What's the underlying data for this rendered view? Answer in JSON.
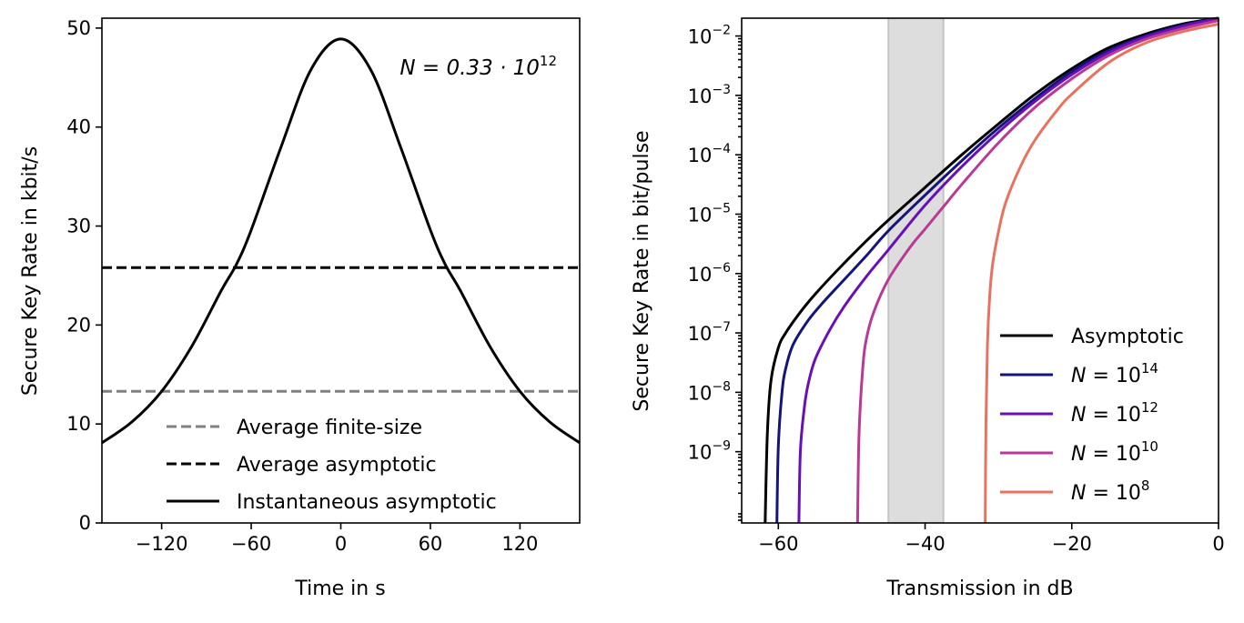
{
  "chart_data": [
    {
      "type": "line",
      "title": "",
      "xlabel": "Time in s",
      "ylabel": "Secure Key Rate in kbit/s",
      "xlim": [
        -160,
        160
      ],
      "ylim": [
        0,
        51
      ],
      "xticks": [
        -120,
        -60,
        0,
        60,
        120
      ],
      "xtick_labels": [
        "−120",
        "−60",
        "0",
        "60",
        "120"
      ],
      "yticks": [
        0,
        10,
        20,
        30,
        40,
        50
      ],
      "ytick_labels": [
        "0",
        "10",
        "20",
        "30",
        "40",
        "50"
      ],
      "annotation": {
        "prefix": "N = 0.33 · 10",
        "exponent": "12"
      },
      "legend_position": "lower-center",
      "series": [
        {
          "name": "Average finite-size",
          "style": "dashed",
          "color": "#808080",
          "kind": "constant",
          "value": 13.3
        },
        {
          "name": "Average asymptotic",
          "style": "dashed",
          "color": "#000000",
          "kind": "constant",
          "value": 25.8
        },
        {
          "name": "Instantaneous asymptotic",
          "style": "solid",
          "color": "#000000",
          "kind": "curve",
          "x": [
            -160,
            -140,
            -120,
            -100,
            -80,
            -70,
            -60,
            -40,
            -20,
            0,
            20,
            40,
            60,
            70,
            80,
            100,
            120,
            140,
            160
          ],
          "y": [
            8.1,
            10.2,
            13.3,
            17.8,
            23.5,
            26.1,
            29.6,
            38.0,
            45.8,
            48.9,
            45.8,
            38.0,
            29.6,
            26.1,
            23.5,
            17.8,
            13.3,
            10.2,
            8.1
          ]
        }
      ]
    },
    {
      "type": "line",
      "title": "",
      "xlabel": "Transmission in dB",
      "ylabel": "Secure Key Rate in bit/pulse",
      "xlim": [
        -65,
        0
      ],
      "ylim_log10": [
        -10.2,
        -1.7
      ],
      "yscale": "log",
      "xticks": [
        -60,
        -40,
        -20,
        0
      ],
      "xtick_labels": [
        "−60",
        "−40",
        "−20",
        "0"
      ],
      "yticks_exponents": [
        "−2",
        "−3",
        "−4",
        "−5",
        "−6",
        "−7",
        "−8",
        "−9"
      ],
      "ytick_base": "10",
      "shaded_region": {
        "x": [
          -45,
          -37.5
        ],
        "color": "#dddddd"
      },
      "legend_position": "lower-right",
      "series": [
        {
          "name": "Asymptotic",
          "label_prefix": "Asymptotic",
          "label_exponent": "",
          "color": "#000000",
          "style": "solid",
          "xmin": -61.8,
          "x": [
            -61.8,
            -61.5,
            -61,
            -60,
            -59,
            -57,
            -55,
            -52,
            -48,
            -45,
            -40,
            -35,
            -30,
            -25,
            -20,
            -15,
            -10,
            -5,
            0
          ],
          "logy": [
            -10.2,
            -8.7,
            -7.8,
            -7.25,
            -7.0,
            -6.65,
            -6.35,
            -5.95,
            -5.45,
            -5.1,
            -4.55,
            -4.0,
            -3.48,
            -2.98,
            -2.55,
            -2.2,
            -1.97,
            -1.8,
            -1.66
          ]
        },
        {
          "name": "N = 10^14",
          "label_prefix": "N = 10",
          "label_exponent": "14",
          "color": "#14147d",
          "style": "solid",
          "xmin": -60.2,
          "x": [
            -60.2,
            -60,
            -59.5,
            -59,
            -58,
            -56,
            -54,
            -51,
            -48,
            -45,
            -40,
            -35,
            -30,
            -25,
            -20,
            -15,
            -10,
            -5,
            0
          ],
          "logy": [
            -10.2,
            -8.9,
            -8.0,
            -7.6,
            -7.2,
            -6.8,
            -6.5,
            -6.1,
            -5.7,
            -5.28,
            -4.68,
            -4.1,
            -3.55,
            -3.05,
            -2.6,
            -2.25,
            -2.0,
            -1.82,
            -1.68
          ]
        },
        {
          "name": "N = 10^12",
          "label_prefix": "N = 10",
          "label_exponent": "12",
          "color": "#6a0fb7",
          "style": "solid",
          "xmin": -57.2,
          "x": [
            -57.2,
            -57,
            -56.5,
            -56,
            -55,
            -53,
            -51,
            -48,
            -45,
            -40,
            -35,
            -30,
            -25,
            -20,
            -15,
            -10,
            -5,
            0
          ],
          "logy": [
            -10.2,
            -9.0,
            -8.3,
            -7.9,
            -7.45,
            -6.95,
            -6.55,
            -6.05,
            -5.6,
            -4.85,
            -4.2,
            -3.62,
            -3.1,
            -2.65,
            -2.28,
            -2.02,
            -1.84,
            -1.7
          ]
        },
        {
          "name": "N = 10^10",
          "label_prefix": "N = 10",
          "label_exponent": "10",
          "color": "#b83a96",
          "style": "solid",
          "xmin": -49.2,
          "x": [
            -49.2,
            -49,
            -48.5,
            -48,
            -47,
            -45,
            -42,
            -40,
            -37,
            -35,
            -30,
            -25,
            -20,
            -15,
            -10,
            -5,
            0
          ],
          "logy": [
            -10.2,
            -8.7,
            -7.6,
            -7.1,
            -6.65,
            -6.1,
            -5.55,
            -5.25,
            -4.8,
            -4.5,
            -3.8,
            -3.2,
            -2.72,
            -2.33,
            -2.06,
            -1.88,
            -1.74
          ]
        },
        {
          "name": "N = 10^8",
          "label_prefix": "N = 10",
          "label_exponent": "8",
          "color": "#e8725f",
          "style": "solid",
          "xmin": -31.8,
          "x": [
            -31.8,
            -31.7,
            -31.5,
            -31.2,
            -30.8,
            -30,
            -29,
            -27,
            -25,
            -22,
            -20,
            -15,
            -10,
            -5,
            0
          ],
          "logy": [
            -10.2,
            -8.5,
            -7.2,
            -6.4,
            -5.85,
            -5.3,
            -4.8,
            -4.2,
            -3.75,
            -3.25,
            -2.98,
            -2.45,
            -2.12,
            -1.93,
            -1.8
          ]
        }
      ]
    }
  ]
}
